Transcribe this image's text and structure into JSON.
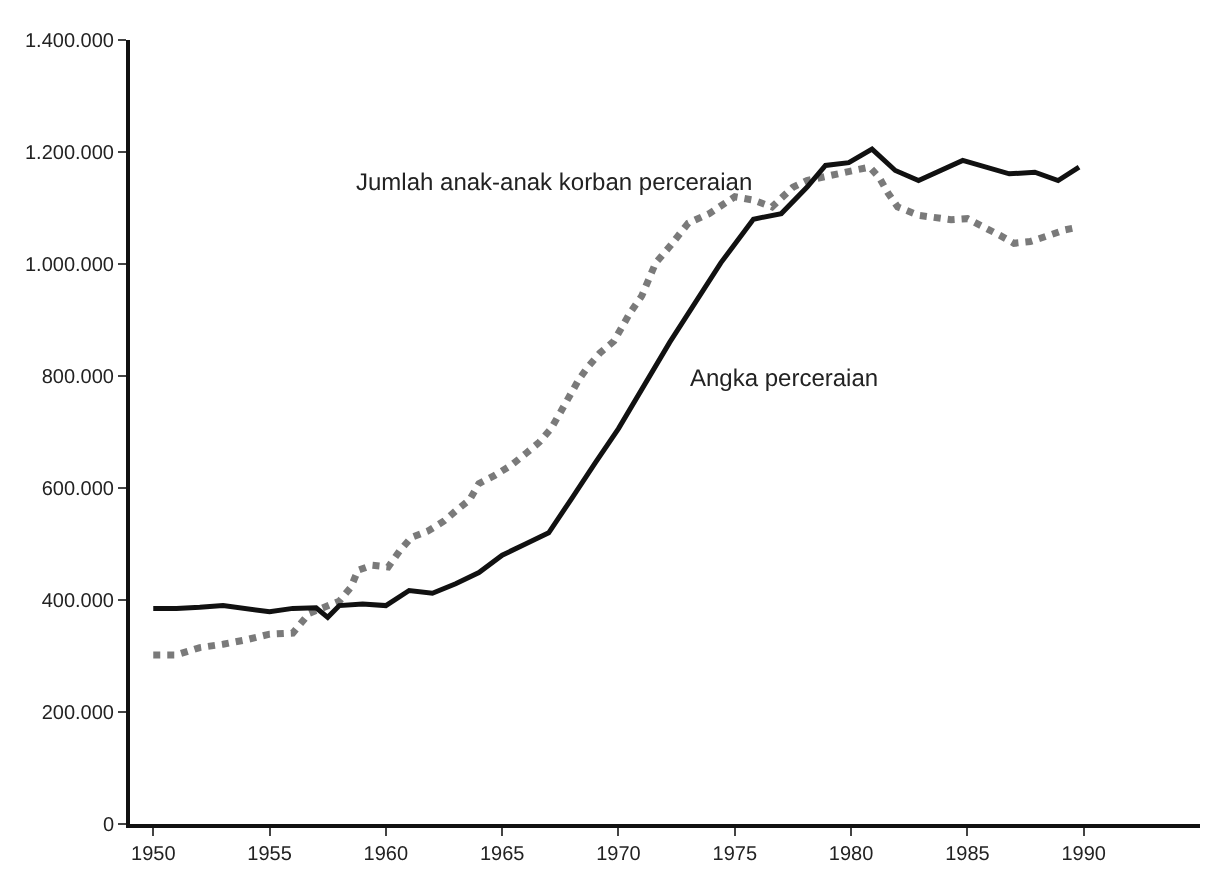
{
  "chart_data": {
    "type": "line",
    "xlim": [
      1949,
      1995
    ],
    "xticks": [
      1950,
      1955,
      1960,
      1965,
      1970,
      1975,
      1980,
      1985,
      1990
    ],
    "ylim": [
      0,
      1400000
    ],
    "yticks": [
      0,
      {
        "value": 200000,
        "label": "200.000"
      },
      {
        "value": 400000,
        "label": "400.000"
      },
      {
        "value": 600000,
        "label": "600.000"
      },
      {
        "value": 800000,
        "label": "800.000"
      },
      {
        "value": 1000000,
        "label": "1.000.000"
      },
      {
        "value": 1200000,
        "label": "1.200.000"
      },
      {
        "value": 1400000,
        "label": "1.400.000"
      }
    ],
    "legend": false,
    "series": [
      {
        "name": "Jumlah anak-anak korban perceraian",
        "color": "#7a7a7a",
        "line_style": "dotted",
        "x": [
          1950,
          1951,
          1952,
          1953,
          1954,
          1955,
          1956,
          1956.7,
          1958,
          1958.5,
          1958.8,
          1959.4,
          1960.1,
          1960.6,
          1961.1,
          1961.8,
          1962.5,
          1963,
          1963.6,
          1964,
          1964.7,
          1965.4,
          1966,
          1966.6,
          1967.1,
          1967.5,
          1968.3,
          1968.7,
          1969.2,
          1969.8,
          1970.5,
          1971,
          1971.6,
          1972.2,
          1973,
          1973.9,
          1975,
          1975.8,
          1976.6,
          1977.5,
          1978.1,
          1980.1,
          1980.8,
          1981.2,
          1981.6,
          1982,
          1982.9,
          1984.3,
          1985,
          1985.7,
          1986.4,
          1987,
          1987.7,
          1988.5,
          1989.2,
          1989.8
        ],
        "values": [
          302000,
          302000,
          315000,
          321000,
          329000,
          339000,
          341000,
          376000,
          398000,
          423000,
          453000,
          462000,
          459000,
          488000,
          512000,
          523000,
          541000,
          559000,
          579000,
          608000,
          623000,
          641000,
          661000,
          682000,
          706000,
          735000,
          794000,
          817000,
          841000,
          862000,
          913000,
          943000,
          1002000,
          1031000,
          1073000,
          1090000,
          1120000,
          1114000,
          1102000,
          1137000,
          1149000,
          1167000,
          1173000,
          1155000,
          1126000,
          1102000,
          1087000,
          1079000,
          1081000,
          1066000,
          1051000,
          1037000,
          1040000,
          1051000,
          1061000,
          1066000
        ]
      },
      {
        "name": "Angka perceraian",
        "color": "#111111",
        "line_style": "solid",
        "x": [
          1950,
          1951,
          1952,
          1953,
          1955,
          1956,
          1957,
          1957.5,
          1958,
          1959,
          1960,
          1961,
          1962,
          1963,
          1964,
          1965,
          1966,
          1967,
          1968,
          1969,
          1970,
          1972.2,
          1974.4,
          1975.8,
          1977,
          1978.1,
          1978.9,
          1979.9,
          1980.9,
          1981.9,
          1982.9,
          1984.8,
          1986.8,
          1987.9,
          1988.9,
          1989.8
        ],
        "values": [
          385000,
          385000,
          387000,
          390000,
          379000,
          385000,
          386000,
          369000,
          390000,
          393000,
          390000,
          417000,
          412000,
          429000,
          449000,
          480000,
          500000,
          520000,
          582000,
          645000,
          706000,
          860000,
          1002000,
          1080000,
          1090000,
          1137000,
          1176000,
          1181000,
          1205000,
          1167000,
          1149000,
          1185000,
          1161000,
          1164000,
          1149000,
          1173000
        ]
      }
    ]
  }
}
